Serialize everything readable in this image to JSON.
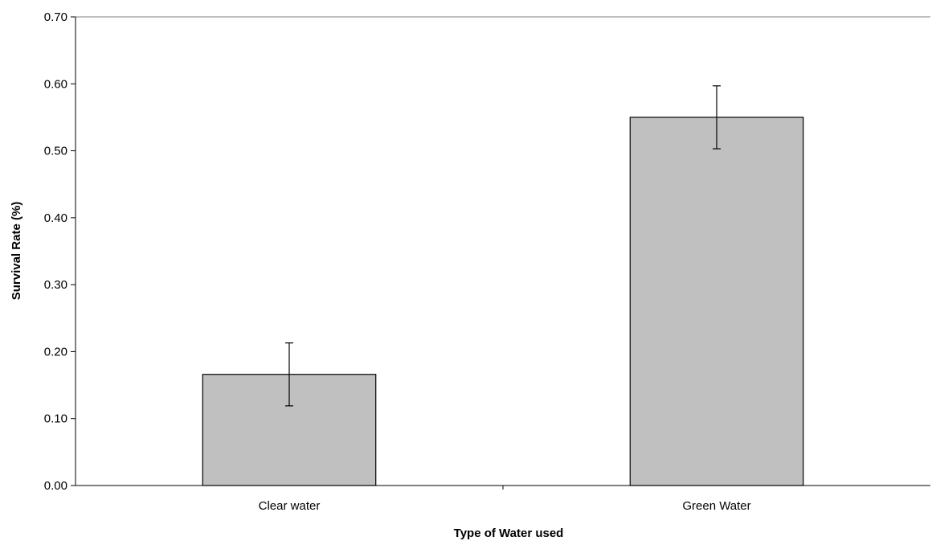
{
  "chart_data": {
    "type": "bar",
    "title": "",
    "xlabel": "Type of Water used",
    "ylabel": "Survival Rate (%)",
    "categories": [
      "Clear water",
      "Green Water"
    ],
    "values": [
      0.166,
      0.55
    ],
    "error": [
      0.047,
      0.047
    ],
    "ylim": [
      0,
      0.7
    ],
    "yticks": [
      0.0,
      0.1,
      0.2,
      0.3,
      0.4,
      0.5,
      0.6,
      0.7
    ],
    "ytick_labels": [
      "0.00",
      "0.10",
      "0.20",
      "0.30",
      "0.40",
      "0.50",
      "0.60",
      "0.70"
    ],
    "grid": false,
    "legend": "none",
    "bar_color": "#c0c0c0",
    "bar_edge_color": "#000000",
    "axis_color": "#808080"
  }
}
